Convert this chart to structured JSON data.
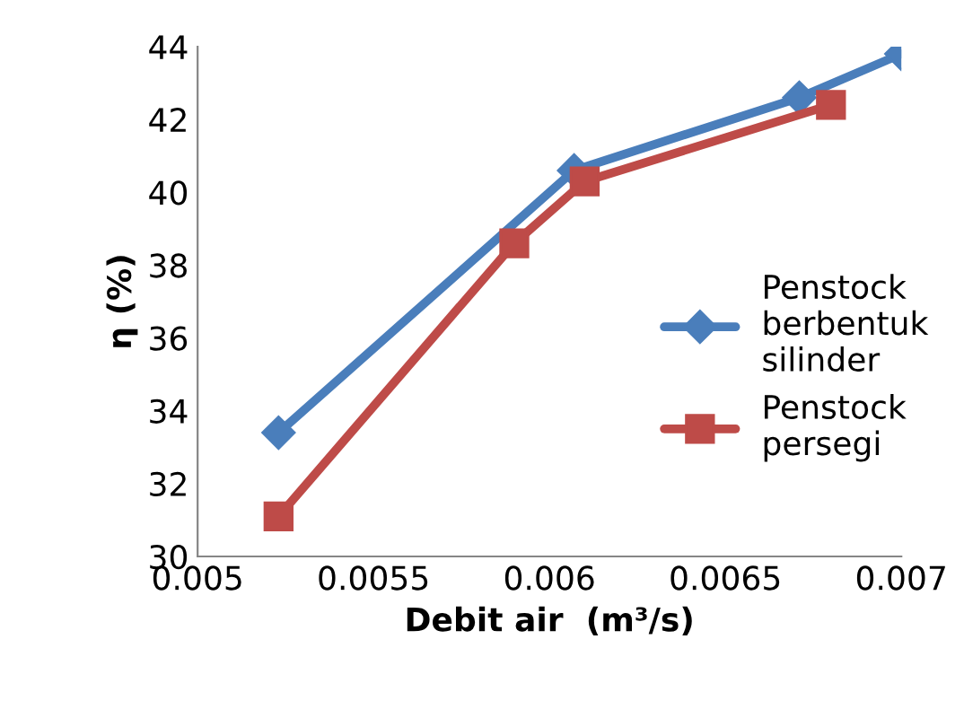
{
  "chart_data": {
    "type": "line",
    "xlabel": "Debit air  (m³/s)",
    "ylabel": "η (%)",
    "series": [
      {
        "name": "Penstock berbentuk silinder",
        "color": "#4a7ebb",
        "x": [
          0.00523,
          0.00607,
          0.00671,
          0.007
        ],
        "values": [
          33.4,
          40.6,
          42.6,
          43.8
        ],
        "marker": "diamond"
      },
      {
        "name": "Penstock persegi",
        "color": "#be4b48",
        "x": [
          0.00523,
          0.0059,
          0.0061,
          0.0068
        ],
        "values": [
          31.1,
          38.6,
          40.3,
          42.4
        ],
        "marker": "square"
      }
    ],
    "xlim": [
      0.005,
      0.007
    ],
    "xticks": [
      {
        "value": 0.005,
        "label": "0.005"
      },
      {
        "value": 0.0055,
        "label": "0.0055"
      },
      {
        "value": 0.006,
        "label": "0.006"
      },
      {
        "value": 0.0065,
        "label": "0.0065"
      },
      {
        "value": 0.007,
        "label": "0.007"
      }
    ],
    "ylim": [
      30,
      44
    ],
    "yticks": [
      30,
      32,
      34,
      36,
      38,
      40,
      42,
      44
    ],
    "grid": false,
    "legend": "right",
    "line_style": "solid"
  }
}
